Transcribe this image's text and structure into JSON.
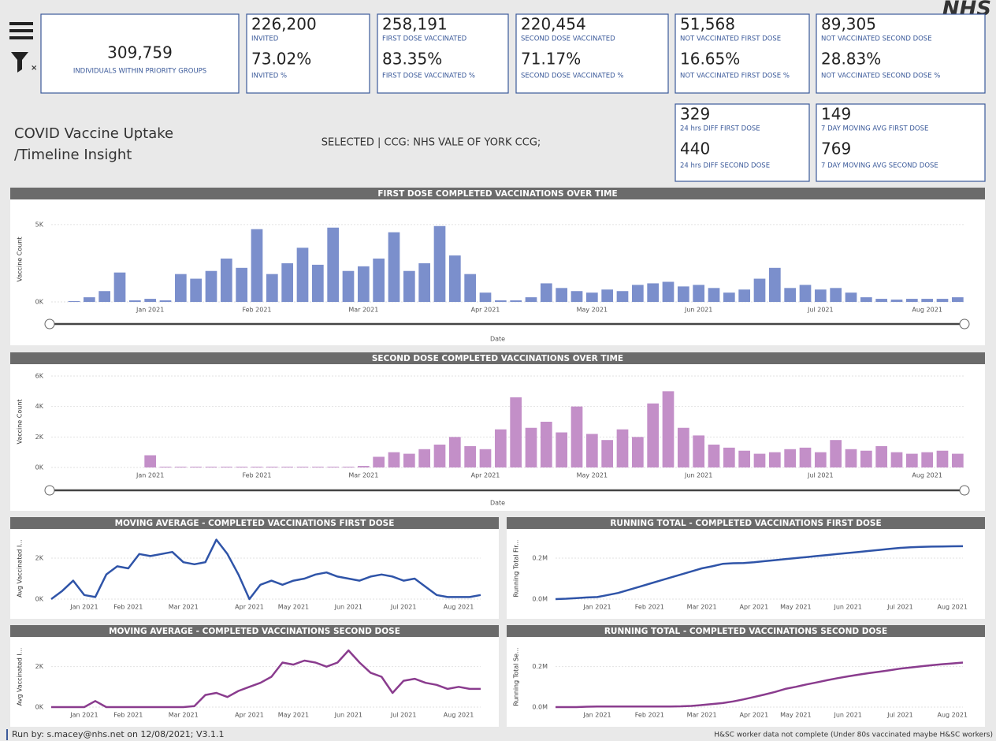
{
  "header": {
    "title_line1": "COVID Vaccine Uptake",
    "title_line2": "/Timeline Insight",
    "selection": "SELECTED | CCG: NHS VALE OF YORK CCG;",
    "logo": "NHS"
  },
  "kpis": [
    {
      "value": "309,759",
      "label": "INDIVIDUALS WITHIN PRIORITY GROUPS"
    },
    {
      "value": "226,200",
      "label": "INVITED",
      "value2": "73.02%",
      "label2": "INVITED %"
    },
    {
      "value": "258,191",
      "label": "FIRST DOSE VACCINATED",
      "value2": "83.35%",
      "label2": "FIRST DOSE VACCINATED %"
    },
    {
      "value": "220,454",
      "label": "SECOND DOSE VACCINATED",
      "value2": "71.17%",
      "label2": "SECOND DOSE VACCINATED %"
    },
    {
      "value": "51,568",
      "label": "NOT VACCINATED FIRST DOSE",
      "value2": "16.65%",
      "label2": "NOT VACCINATED FIRST DOSE %"
    },
    {
      "value": "89,305",
      "label": "NOT VACCINATED SECOND DOSE",
      "value2": "28.83%",
      "label2": "NOT VACCINATED SECOND DOSE %"
    },
    {
      "value": "329",
      "label": "24 hrs DIFF FIRST DOSE",
      "value2": "440",
      "label2": "24 hrs DIFF SECOND DOSE"
    },
    {
      "value": "149",
      "label": "7 DAY MOVING AVG FIRST DOSE",
      "value2": "769",
      "label2": "7 DAY MOVING AVG SECOND DOSE"
    }
  ],
  "chart_data": [
    {
      "type": "bar",
      "title": "FIRST DOSE COMPLETED VACCINATIONS OVER TIME",
      "y_label": "Vaccine Count",
      "x_label": "Date",
      "color": "#7b8fcc",
      "grid": true,
      "ylim": [
        0,
        5500
      ],
      "yticks": [
        {
          "value": 0,
          "label": "0K"
        },
        {
          "value": 5000,
          "label": "5K"
        }
      ],
      "categories": [
        null,
        null,
        null,
        null,
        null,
        null,
        "Jan 2021",
        null,
        null,
        null,
        null,
        null,
        null,
        "Feb 2021",
        null,
        null,
        null,
        null,
        null,
        null,
        "Mar 2021",
        null,
        null,
        null,
        null,
        null,
        null,
        null,
        "Apr 2021",
        null,
        null,
        null,
        null,
        null,
        null,
        "May 2021",
        null,
        null,
        null,
        null,
        null,
        null,
        "Jun 2021",
        null,
        null,
        null,
        null,
        null,
        null,
        null,
        "Jul 2021",
        null,
        null,
        null,
        null,
        null,
        null,
        "Aug 2021",
        null,
        null
      ],
      "values": [
        0,
        50,
        300,
        700,
        1900,
        100,
        200,
        100,
        1800,
        1500,
        2000,
        2800,
        2200,
        4700,
        1800,
        2500,
        3500,
        2400,
        4800,
        2000,
        2300,
        2800,
        4500,
        2000,
        2500,
        4900,
        3000,
        1800,
        600,
        100,
        100,
        300,
        1200,
        900,
        700,
        600,
        800,
        700,
        1100,
        1200,
        1300,
        1000,
        1100,
        900,
        600,
        800,
        1500,
        2200,
        900,
        1100,
        800,
        900,
        600,
        300,
        200,
        150,
        200,
        200,
        200,
        300
      ]
    },
    {
      "type": "bar",
      "title": "SECOND DOSE COMPLETED VACCINATIONS OVER TIME",
      "y_label": "Vaccine Count",
      "x_label": "Date",
      "color": "#c38fc8",
      "grid": true,
      "ylim": [
        0,
        6000
      ],
      "yticks": [
        {
          "value": 0,
          "label": "0K"
        },
        {
          "value": 2000,
          "label": "2K"
        },
        {
          "value": 4000,
          "label": "4K"
        },
        {
          "value": 6000,
          "label": "6K"
        }
      ],
      "categories": [
        null,
        null,
        null,
        null,
        null,
        null,
        "Jan 2021",
        null,
        null,
        null,
        null,
        null,
        null,
        "Feb 2021",
        null,
        null,
        null,
        null,
        null,
        null,
        "Mar 2021",
        null,
        null,
        null,
        null,
        null,
        null,
        null,
        "Apr 2021",
        null,
        null,
        null,
        null,
        null,
        null,
        "May 2021",
        null,
        null,
        null,
        null,
        null,
        null,
        "Jun 2021",
        null,
        null,
        null,
        null,
        null,
        null,
        null,
        "Jul 2021",
        null,
        null,
        null,
        null,
        null,
        null,
        "Aug 2021",
        null,
        null
      ],
      "values": [
        0,
        0,
        0,
        0,
        0,
        0,
        800,
        50,
        50,
        50,
        50,
        50,
        50,
        50,
        50,
        50,
        50,
        50,
        50,
        50,
        100,
        700,
        1000,
        900,
        1200,
        1500,
        2000,
        1400,
        1200,
        2500,
        4600,
        2600,
        3000,
        2300,
        4000,
        2200,
        1800,
        2500,
        2000,
        4200,
        5000,
        2600,
        2100,
        1500,
        1300,
        1100,
        900,
        1000,
        1200,
        1300,
        1000,
        1800,
        1200,
        1100,
        1400,
        1000,
        900,
        1000,
        1100,
        900
      ]
    },
    {
      "type": "line",
      "title": "MOVING AVERAGE - COMPLETED VACCINATIONS FIRST DOSE",
      "y_label": "Avg Vaccinated I...",
      "color": "#2f54a8",
      "grid": true,
      "ylim": [
        0,
        3000
      ],
      "yticks": [
        {
          "value": 0,
          "label": "0K"
        },
        {
          "value": 2000,
          "label": "2K"
        }
      ],
      "categories": [
        null,
        null,
        null,
        "Jan 2021",
        null,
        null,
        null,
        "Feb 2021",
        null,
        null,
        null,
        null,
        "Mar 2021",
        null,
        null,
        null,
        null,
        null,
        "Apr 2021",
        null,
        null,
        null,
        "May 2021",
        null,
        null,
        null,
        null,
        "Jun 2021",
        null,
        null,
        null,
        null,
        "Jul 2021",
        null,
        null,
        null,
        null,
        "Aug 2021",
        null,
        null
      ],
      "values": [
        0,
        400,
        900,
        200,
        100,
        1200,
        1600,
        1500,
        2200,
        2100,
        2200,
        2300,
        1800,
        1700,
        1800,
        2900,
        2200,
        1200,
        0,
        700,
        900,
        700,
        900,
        1000,
        1200,
        1300,
        1100,
        1000,
        900,
        1100,
        1200,
        1100,
        900,
        1000,
        600,
        200,
        100,
        100,
        100,
        200
      ]
    },
    {
      "type": "line",
      "title": "RUNNING TOTAL - COMPLETED VACCINATIONS FIRST DOSE",
      "y_label": "Running Total Fir...",
      "color": "#2f54a8",
      "grid": true,
      "ylim": [
        0,
        300000
      ],
      "yticks": [
        {
          "value": 0,
          "label": "0.0M"
        },
        {
          "value": 200000,
          "label": "0.2M"
        }
      ],
      "categories": [
        null,
        null,
        null,
        null,
        "Jan 2021",
        null,
        null,
        null,
        null,
        "Feb 2021",
        null,
        null,
        null,
        null,
        "Mar 2021",
        null,
        null,
        null,
        null,
        "Apr 2021",
        null,
        null,
        null,
        "May 2021",
        null,
        null,
        null,
        null,
        "Jun 2021",
        null,
        null,
        null,
        null,
        "Jul 2021",
        null,
        null,
        null,
        null,
        "Aug 2021",
        null
      ],
      "values": [
        0,
        2000,
        5000,
        8000,
        10000,
        20000,
        30000,
        45000,
        60000,
        75000,
        90000,
        105000,
        120000,
        135000,
        150000,
        160000,
        172000,
        175000,
        176000,
        180000,
        185000,
        190000,
        195000,
        200000,
        205000,
        210000,
        215000,
        220000,
        225000,
        230000,
        235000,
        240000,
        245000,
        250000,
        253000,
        255000,
        256000,
        257000,
        257500,
        258000
      ]
    },
    {
      "type": "line",
      "title": "MOVING AVERAGE - COMPLETED VACCINATIONS SECOND DOSE",
      "y_label": "Avg Vaccinated I...",
      "color": "#8a3c8e",
      "grid": true,
      "ylim": [
        0,
        3000
      ],
      "yticks": [
        {
          "value": 0,
          "label": "0K"
        },
        {
          "value": 2000,
          "label": "2K"
        }
      ],
      "categories": [
        null,
        null,
        null,
        "Jan 2021",
        null,
        null,
        null,
        "Feb 2021",
        null,
        null,
        null,
        null,
        "Mar 2021",
        null,
        null,
        null,
        null,
        null,
        "Apr 2021",
        null,
        null,
        null,
        "May 2021",
        null,
        null,
        null,
        null,
        "Jun 2021",
        null,
        null,
        null,
        null,
        "Jul 2021",
        null,
        null,
        null,
        null,
        "Aug 2021",
        null,
        null
      ],
      "values": [
        0,
        0,
        0,
        0,
        300,
        0,
        0,
        0,
        0,
        0,
        0,
        0,
        0,
        50,
        600,
        700,
        500,
        800,
        1000,
        1200,
        1500,
        2200,
        2100,
        2300,
        2200,
        2000,
        2200,
        2800,
        2200,
        1700,
        1500,
        700,
        1300,
        1400,
        1200,
        1100,
        900,
        1000,
        900,
        900
      ]
    },
    {
      "type": "line",
      "title": "RUNNING TOTAL - COMPLETED VACCINATIONS SECOND DOSE",
      "y_label": "Running Total Se...",
      "color": "#8a3c8e",
      "grid": true,
      "ylim": [
        0,
        300000
      ],
      "yticks": [
        {
          "value": 0,
          "label": "0.0M"
        },
        {
          "value": 200000,
          "label": "0.2M"
        }
      ],
      "categories": [
        null,
        null,
        null,
        null,
        "Jan 2021",
        null,
        null,
        null,
        null,
        "Feb 2021",
        null,
        null,
        null,
        null,
        "Mar 2021",
        null,
        null,
        null,
        null,
        "Apr 2021",
        null,
        null,
        null,
        "May 2021",
        null,
        null,
        null,
        null,
        "Jun 2021",
        null,
        null,
        null,
        null,
        "Jul 2021",
        null,
        null,
        null,
        null,
        "Aug 2021",
        null
      ],
      "values": [
        0,
        0,
        0,
        2000,
        3000,
        3000,
        3000,
        3000,
        3000,
        3000,
        3000,
        3000,
        4000,
        6000,
        10000,
        15000,
        20000,
        28000,
        38000,
        50000,
        62000,
        75000,
        90000,
        100000,
        112000,
        122000,
        133000,
        143000,
        152000,
        160000,
        168000,
        175000,
        182000,
        190000,
        196000,
        202000,
        207000,
        212000,
        216000,
        220000
      ]
    }
  ],
  "footer": {
    "run_by": "Run by: s.macey@nhs.net on 12/08/2021; V3.1.1",
    "note": "H&SC worker data not complete (Under 80s vaccinated maybe H&SC workers)"
  }
}
